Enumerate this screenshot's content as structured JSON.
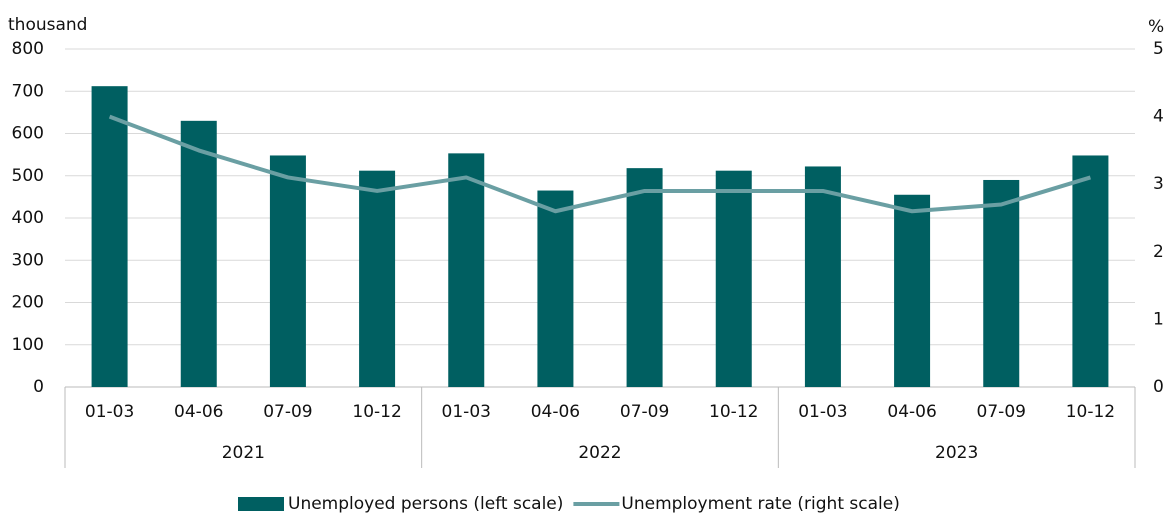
{
  "chart_data": {
    "type": "bar-line",
    "y_label": "thousand",
    "y2_label": "%",
    "groups": [
      {
        "name": "2021",
        "categories": [
          "01-03",
          "04-06",
          "07-09",
          "10-12"
        ]
      },
      {
        "name": "2022",
        "categories": [
          "01-03",
          "04-06",
          "07-09",
          "10-12"
        ]
      },
      {
        "name": "2023",
        "categories": [
          "01-03",
          "04-06",
          "07-09",
          "10-12"
        ]
      }
    ],
    "series": [
      {
        "name": "Unemployed persons (left scale)",
        "type": "bar",
        "color": "#005f61",
        "values": [
          712,
          630,
          548,
          512,
          553,
          465,
          518,
          512,
          522,
          455,
          490,
          548
        ]
      },
      {
        "name": "Unemployment rate (right scale)",
        "type": "line",
        "axis": "y2",
        "color": "#6a9fa3",
        "values": [
          4.0,
          3.5,
          3.1,
          2.9,
          3.1,
          2.6,
          2.9,
          2.9,
          2.9,
          2.6,
          2.7,
          3.1
        ]
      }
    ],
    "ylim": [
      0,
      800
    ],
    "yticks": [
      0,
      100,
      200,
      300,
      400,
      500,
      600,
      700,
      800
    ],
    "y2lim": [
      0,
      5
    ],
    "y2ticks": [
      0,
      1,
      2,
      3,
      4,
      5
    ],
    "grid": true,
    "legend": "bottom"
  }
}
